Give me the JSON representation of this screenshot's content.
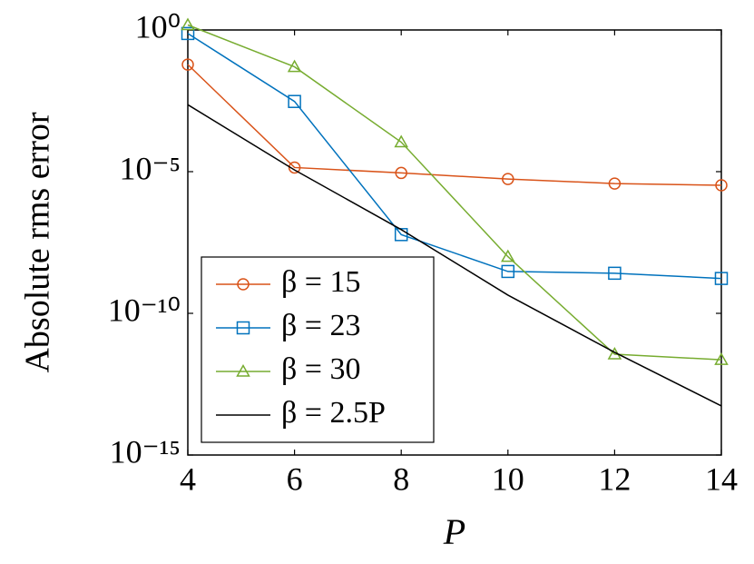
{
  "chart_data": {
    "type": "line",
    "x_label": "P",
    "y_label": "Absolute rms error",
    "log_y": true,
    "grid": false,
    "legend_position": "lower left",
    "x": [
      4,
      6,
      8,
      10,
      12,
      14
    ],
    "xlim": [
      4,
      14
    ],
    "xticks": [
      4,
      6,
      8,
      10,
      12,
      14
    ],
    "ylim": [
      1e-15,
      1
    ],
    "yticks": [
      {
        "value": 1e-15,
        "label": "10⁻¹⁵"
      },
      {
        "value": 1e-10,
        "label": "10⁻¹⁰"
      },
      {
        "value": 1e-05,
        "label": "10⁻⁵"
      },
      {
        "value": 1,
        "label": "10⁰"
      }
    ],
    "series": [
      {
        "name": "β = 15",
        "color": "#d95319",
        "marker": "circle",
        "values": [
          0.06,
          1.4e-05,
          9e-06,
          5.5e-06,
          3.8e-06,
          3.3e-06
        ]
      },
      {
        "name": "β = 23",
        "color": "#0072bd",
        "marker": "square",
        "values": [
          0.75,
          0.003,
          6e-08,
          3e-09,
          2.6e-09,
          1.7e-09
        ]
      },
      {
        "name": "β = 30",
        "color": "#77ac30",
        "marker": "triangle",
        "values": [
          1.5,
          0.05,
          0.00011,
          1e-08,
          3.6e-12,
          2.3e-12
        ]
      },
      {
        "name": "β = 2.5P",
        "color": "#000000",
        "values": [
          0.0023,
          1.15e-05,
          9e-08,
          4.4e-10,
          4.2e-12,
          5.4e-14
        ]
      }
    ]
  }
}
